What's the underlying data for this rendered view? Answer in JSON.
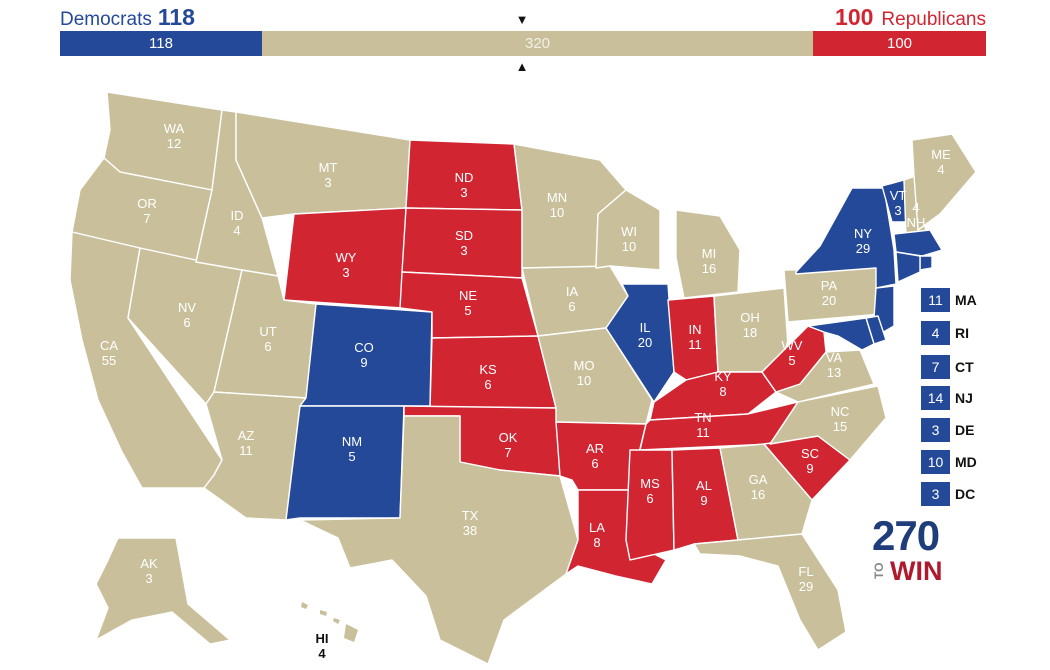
{
  "header": {
    "dem_label": "Democrats",
    "dem_total": "118",
    "rep_label": "Republicans",
    "rep_total": "100",
    "bar_dem": "118",
    "bar_tossup": "320",
    "bar_rep": "100",
    "marker_top": "▼",
    "marker_bottom": "▲"
  },
  "colors": {
    "democrat": "#244999",
    "republican": "#d22532",
    "tossup": "#c9c09b"
  },
  "states": [
    {
      "abbr": "WA",
      "ev": "12",
      "party": "tossup"
    },
    {
      "abbr": "OR",
      "ev": "7",
      "party": "tossup"
    },
    {
      "abbr": "CA",
      "ev": "55",
      "party": "tossup"
    },
    {
      "abbr": "NV",
      "ev": "6",
      "party": "tossup"
    },
    {
      "abbr": "ID",
      "ev": "4",
      "party": "tossup"
    },
    {
      "abbr": "MT",
      "ev": "3",
      "party": "tossup"
    },
    {
      "abbr": "WY",
      "ev": "3",
      "party": "republican"
    },
    {
      "abbr": "UT",
      "ev": "6",
      "party": "tossup"
    },
    {
      "abbr": "AZ",
      "ev": "11",
      "party": "tossup"
    },
    {
      "abbr": "CO",
      "ev": "9",
      "party": "democrat"
    },
    {
      "abbr": "NM",
      "ev": "5",
      "party": "democrat"
    },
    {
      "abbr": "ND",
      "ev": "3",
      "party": "republican"
    },
    {
      "abbr": "SD",
      "ev": "3",
      "party": "republican"
    },
    {
      "abbr": "NE",
      "ev": "5",
      "party": "republican"
    },
    {
      "abbr": "KS",
      "ev": "6",
      "party": "republican"
    },
    {
      "abbr": "OK",
      "ev": "7",
      "party": "republican"
    },
    {
      "abbr": "TX",
      "ev": "38",
      "party": "tossup"
    },
    {
      "abbr": "MN",
      "ev": "10",
      "party": "tossup"
    },
    {
      "abbr": "IA",
      "ev": "6",
      "party": "tossup"
    },
    {
      "abbr": "MO",
      "ev": "10",
      "party": "tossup"
    },
    {
      "abbr": "AR",
      "ev": "6",
      "party": "republican"
    },
    {
      "abbr": "LA",
      "ev": "8",
      "party": "republican"
    },
    {
      "abbr": "WI",
      "ev": "10",
      "party": "tossup"
    },
    {
      "abbr": "IL",
      "ev": "20",
      "party": "democrat"
    },
    {
      "abbr": "MI",
      "ev": "16",
      "party": "tossup"
    },
    {
      "abbr": "IN",
      "ev": "11",
      "party": "republican"
    },
    {
      "abbr": "OH",
      "ev": "18",
      "party": "tossup"
    },
    {
      "abbr": "KY",
      "ev": "8",
      "party": "republican"
    },
    {
      "abbr": "TN",
      "ev": "11",
      "party": "republican"
    },
    {
      "abbr": "MS",
      "ev": "6",
      "party": "republican"
    },
    {
      "abbr": "AL",
      "ev": "9",
      "party": "republican"
    },
    {
      "abbr": "GA",
      "ev": "16",
      "party": "tossup"
    },
    {
      "abbr": "FL",
      "ev": "29",
      "party": "tossup"
    },
    {
      "abbr": "SC",
      "ev": "9",
      "party": "republican"
    },
    {
      "abbr": "NC",
      "ev": "15",
      "party": "tossup"
    },
    {
      "abbr": "VA",
      "ev": "13",
      "party": "tossup"
    },
    {
      "abbr": "WV",
      "ev": "5",
      "party": "republican"
    },
    {
      "abbr": "PA",
      "ev": "20",
      "party": "tossup"
    },
    {
      "abbr": "NY",
      "ev": "29",
      "party": "democrat"
    },
    {
      "abbr": "VT",
      "ev": "3",
      "party": "democrat"
    },
    {
      "abbr": "NH",
      "ev": "4",
      "party": "tossup"
    },
    {
      "abbr": "ME",
      "ev": "4",
      "party": "tossup"
    },
    {
      "abbr": "AK",
      "ev": "3",
      "party": "tossup"
    },
    {
      "abbr": "HI",
      "ev": "4",
      "party": "none"
    }
  ],
  "legend": [
    {
      "ev": "11",
      "abbr": "MA"
    },
    {
      "ev": "4",
      "abbr": "RI"
    },
    {
      "ev": "7",
      "abbr": "CT"
    },
    {
      "ev": "14",
      "abbr": "NJ"
    },
    {
      "ev": "3",
      "abbr": "DE"
    },
    {
      "ev": "10",
      "abbr": "MD"
    },
    {
      "ev": "3",
      "abbr": "DC"
    }
  ],
  "logo": {
    "number": "270",
    "to": "TO",
    "win": "WIN"
  }
}
